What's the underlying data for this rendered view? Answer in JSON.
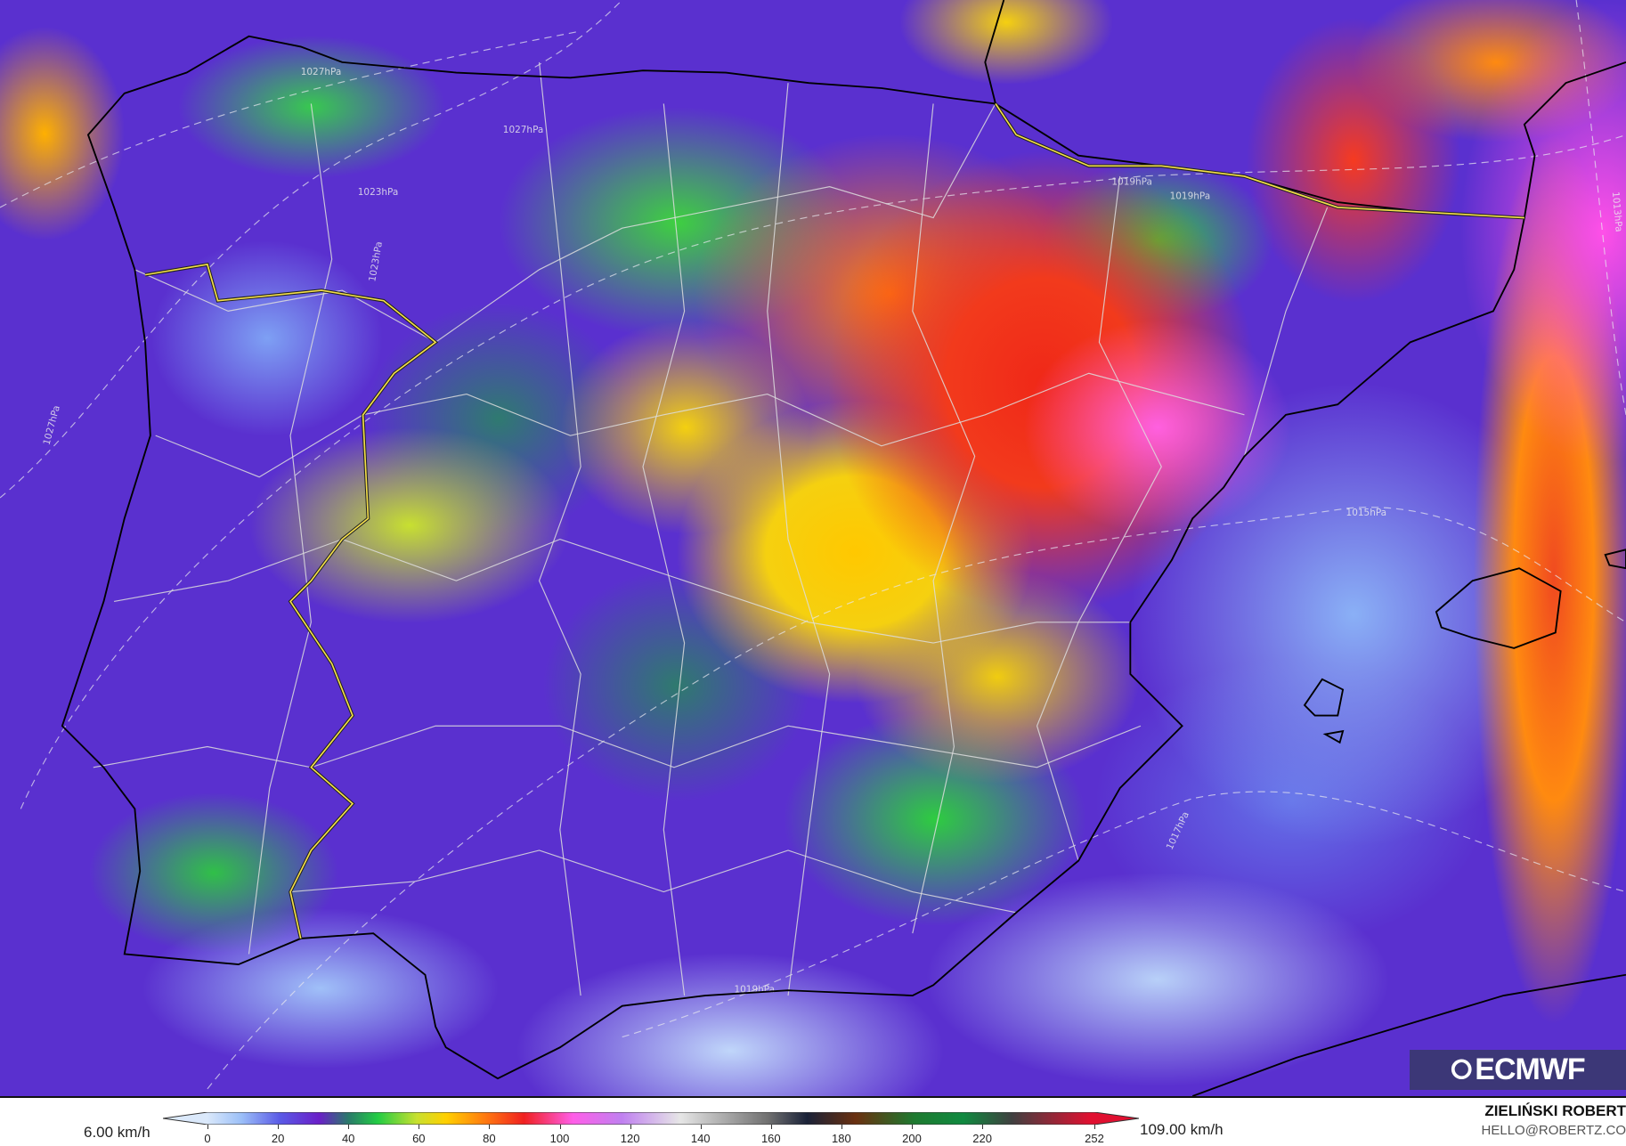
{
  "map": {
    "isobar_labels": [
      "1027hPa",
      "1027hPa",
      "1023hPa",
      "1023hPa",
      "1027hPa",
      "1019hPa",
      "1019hPa",
      "1013hPa",
      "1015hPa",
      "1017hPa",
      "1019hPa"
    ]
  },
  "logo": {
    "text": "ECMWF"
  },
  "legend": {
    "min_label": "6.00 km/h",
    "max_label": "109.00 km/h",
    "unit": "km/h",
    "ticks": [
      "0",
      "20",
      "40",
      "60",
      "80",
      "100",
      "120",
      "140",
      "160",
      "180",
      "200",
      "220",
      "252"
    ]
  },
  "credit": {
    "author": "ZIELIŃSKI ROBERT",
    "email": "HELLO@ROBERTZ.CO"
  },
  "colors": {
    "border_portugal": "#f5e04a",
    "coast": "#000000",
    "provinces": "#dddddd"
  }
}
